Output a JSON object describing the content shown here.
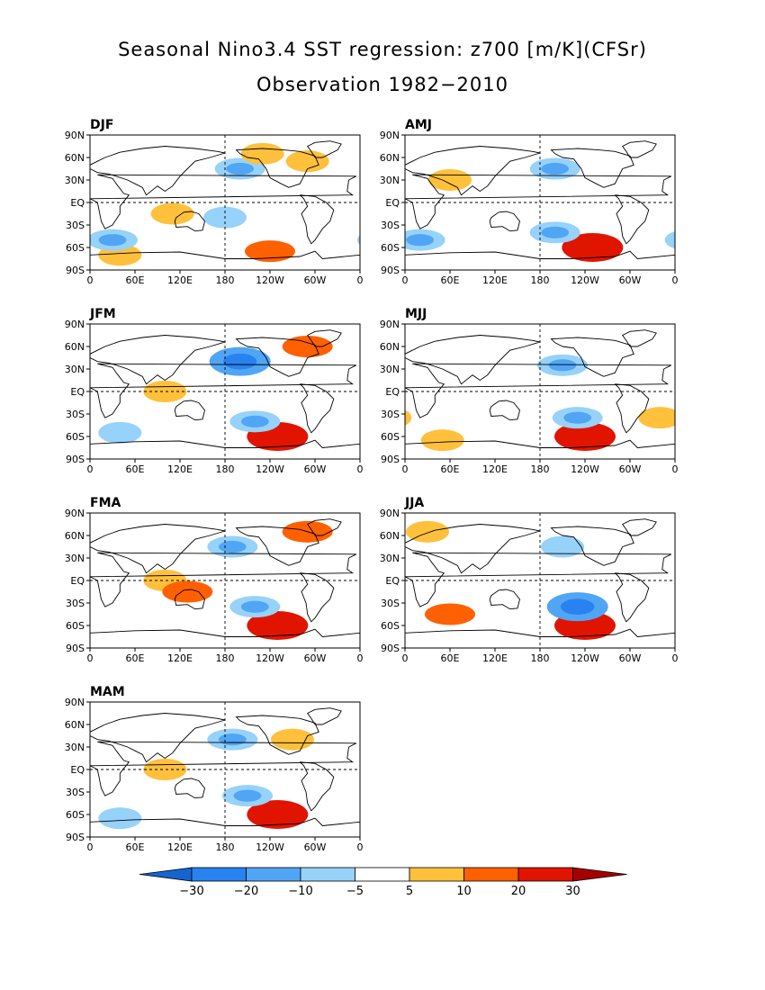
{
  "title": "Seasonal Nino3.4 SST regression: z700 [m/K](CFSr)",
  "subtitle": "Observation 1982−2010",
  "colors": {
    "neg_extreme": "#1464d2",
    "neg_30": "#2882f0",
    "neg_20": "#50a5f5",
    "neg_10": "#96d2fa",
    "neutral": "#ffffff",
    "pos_5": "#ffc03c",
    "pos_10": "#ff6000",
    "pos_20": "#e11400",
    "pos_extreme": "#a50000",
    "continent": "#000000"
  },
  "chart_data": {
    "type": "map",
    "variable": "z700 regression on Nino3.4 SST",
    "units": "m/K",
    "panels": [
      {
        "label": "DJF",
        "features": [
          {
            "lon": 200,
            "lat": 45,
            "value": -20
          },
          {
            "lon": 230,
            "lat": 65,
            "value": 10
          },
          {
            "lon": 290,
            "lat": 55,
            "value": 10
          },
          {
            "lon": 110,
            "lat": -15,
            "value": 10
          },
          {
            "lon": 240,
            "lat": -65,
            "value": 20
          },
          {
            "lon": 40,
            "lat": -70,
            "value": 10
          },
          {
            "lon": 30,
            "lat": -50,
            "value": -20
          },
          {
            "lon": 180,
            "lat": -20,
            "value": -10
          }
        ]
      },
      {
        "label": "JFM",
        "features": [
          {
            "lon": 200,
            "lat": 40,
            "value": -30
          },
          {
            "lon": 290,
            "lat": 60,
            "value": 20
          },
          {
            "lon": 100,
            "lat": 0,
            "value": 10
          },
          {
            "lon": 250,
            "lat": -60,
            "value": 30
          },
          {
            "lon": 220,
            "lat": -40,
            "value": -20
          },
          {
            "lon": 40,
            "lat": -55,
            "value": -10
          }
        ]
      },
      {
        "label": "FMA",
        "features": [
          {
            "lon": 190,
            "lat": 45,
            "value": -20
          },
          {
            "lon": 290,
            "lat": 65,
            "value": 20
          },
          {
            "lon": 100,
            "lat": 0,
            "value": 10
          },
          {
            "lon": 130,
            "lat": -15,
            "value": 20
          },
          {
            "lon": 250,
            "lat": -60,
            "value": 30
          },
          {
            "lon": 220,
            "lat": -35,
            "value": -20
          }
        ]
      },
      {
        "label": "MAM",
        "features": [
          {
            "lon": 190,
            "lat": 40,
            "value": -20
          },
          {
            "lon": 270,
            "lat": 40,
            "value": 10
          },
          {
            "lon": 100,
            "lat": 0,
            "value": 10
          },
          {
            "lon": 250,
            "lat": -60,
            "value": 30
          },
          {
            "lon": 210,
            "lat": -35,
            "value": -20
          },
          {
            "lon": 40,
            "lat": -65,
            "value": -10
          }
        ]
      },
      {
        "label": "AMJ",
        "features": [
          {
            "lon": 200,
            "lat": 45,
            "value": -20
          },
          {
            "lon": 250,
            "lat": -60,
            "value": 30
          },
          {
            "lon": 200,
            "lat": -40,
            "value": -20
          },
          {
            "lon": 20,
            "lat": -50,
            "value": -20
          },
          {
            "lon": 60,
            "lat": 30,
            "value": 10
          }
        ]
      },
      {
        "label": "MJJ",
        "features": [
          {
            "lon": 210,
            "lat": 35,
            "value": -20
          },
          {
            "lon": 240,
            "lat": -60,
            "value": 30
          },
          {
            "lon": 230,
            "lat": -35,
            "value": -20
          },
          {
            "lon": 50,
            "lat": -65,
            "value": 10
          },
          {
            "lon": 340,
            "lat": -35,
            "value": 10
          }
        ]
      },
      {
        "label": "JJA",
        "features": [
          {
            "lon": 240,
            "lat": -60,
            "value": 30
          },
          {
            "lon": 230,
            "lat": -35,
            "value": -30
          },
          {
            "lon": 60,
            "lat": -45,
            "value": 20
          },
          {
            "lon": 210,
            "lat": 45,
            "value": -10
          },
          {
            "lon": 30,
            "lat": 65,
            "value": 10
          }
        ]
      }
    ],
    "x_ticks": [
      "0",
      "60E",
      "120E",
      "180",
      "120W",
      "60W",
      "0"
    ],
    "y_ticks": [
      "90N",
      "60N",
      "30N",
      "EQ",
      "30S",
      "60S",
      "90S"
    ],
    "colorbar": {
      "labels": [
        "−30",
        "−20",
        "−10",
        "−5",
        "5",
        "10",
        "20",
        "30"
      ]
    }
  }
}
